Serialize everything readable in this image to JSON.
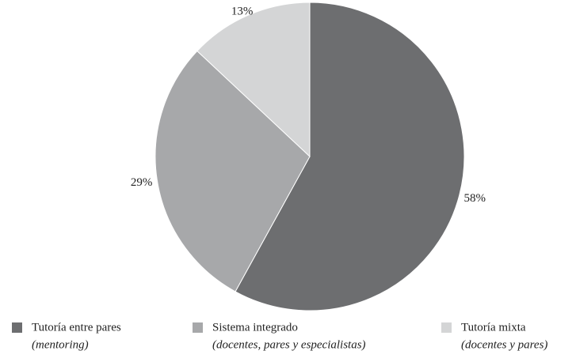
{
  "chart_data": {
    "type": "pie",
    "categories": [
      "Tutoría entre pares",
      "Sistema  integrado",
      "Tutoría mixta"
    ],
    "category_details": [
      "(mentoring)",
      "(docentes, pares y especialistas)",
      "(docentes y pares)"
    ],
    "values": [
      58,
      29,
      13
    ],
    "value_labels": [
      "58%",
      "29%",
      "13%"
    ],
    "colors": [
      "#6d6e70",
      "#a7a8aa",
      "#d4d5d6"
    ]
  }
}
